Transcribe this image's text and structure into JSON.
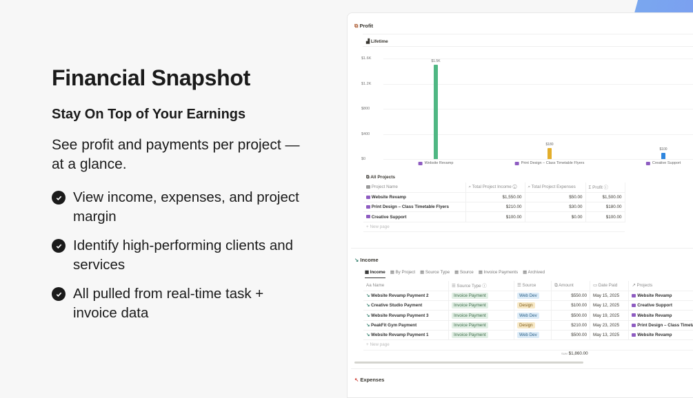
{
  "hero": {
    "title": "Financial Snapshot",
    "subtitle": "Stay On Top of Your Earnings",
    "lead": "See profit and payments per project — at a glance.",
    "bullets": [
      "View income, expenses, and project margin",
      "Identify high-performing clients and services",
      "All pulled from real-time task + invoice data"
    ]
  },
  "profit": {
    "title": "Profit",
    "view": "Lifetime",
    "chart_data": {
      "type": "bar",
      "categories": [
        "Website Revamp",
        "Print Design – Class Timetable Flyers",
        "Creative Support"
      ],
      "values": [
        1500,
        180,
        100
      ],
      "data_labels": [
        "$1.5K",
        "$180",
        "$100"
      ],
      "colors": [
        "#4fb783",
        "#e3ae2b",
        "#2e86de"
      ],
      "yticks": [
        "$0",
        "$400",
        "$800",
        "$1.2K",
        "$1.6K"
      ],
      "ylim": [
        0,
        1600
      ],
      "grid": true
    }
  },
  "projects": {
    "title": "All Projects",
    "columns": [
      "Project Name",
      "Total Project Income",
      "Total Project Expenses",
      "Profit"
    ],
    "rows": [
      [
        "Website Revamp",
        "$1,550.00",
        "$50.00",
        "$1,500.00"
      ],
      [
        "Print Design – Class Timetable Flyers",
        "$210.00",
        "$30.00",
        "$180.00"
      ],
      [
        "Creative Support",
        "$100.00",
        "$0.00",
        "$100.00"
      ]
    ],
    "new_page": "New page"
  },
  "income": {
    "title": "Income",
    "tabs": [
      "Income",
      "By Project",
      "Source Type",
      "Source",
      "Invoice Payments",
      "Archived"
    ],
    "columns": [
      "Name",
      "Source Type",
      "Source",
      "Amount",
      "Date Paid",
      "Projects"
    ],
    "rows": [
      [
        "Website Revamp Payment 2",
        "Invoice Payment",
        "Web Dev",
        "$550.00",
        "May 15, 2025",
        "Website Revamp"
      ],
      [
        "Creative Studio Payment",
        "Invoice Payment",
        "Design",
        "$100.00",
        "May 12, 2025",
        "Creative Support"
      ],
      [
        "Website Revamp Payment 3",
        "Invoice Payment",
        "Web Dev",
        "$500.00",
        "May 19, 2025",
        "Website Revamp"
      ],
      [
        "PeakFit Gym Payment",
        "Invoice Payment",
        "Design",
        "$210.00",
        "May 23, 2025",
        "Print Design – Class Timetable Flyers"
      ],
      [
        "Website Revamp Payment 1",
        "Invoice Payment",
        "Web Dev",
        "$500.00",
        "May 13, 2025",
        "Website Revamp"
      ]
    ],
    "new_page": "New page",
    "sum_label": "SUM",
    "sum": "$1,860.00"
  },
  "expenses": {
    "title": "Expenses"
  }
}
